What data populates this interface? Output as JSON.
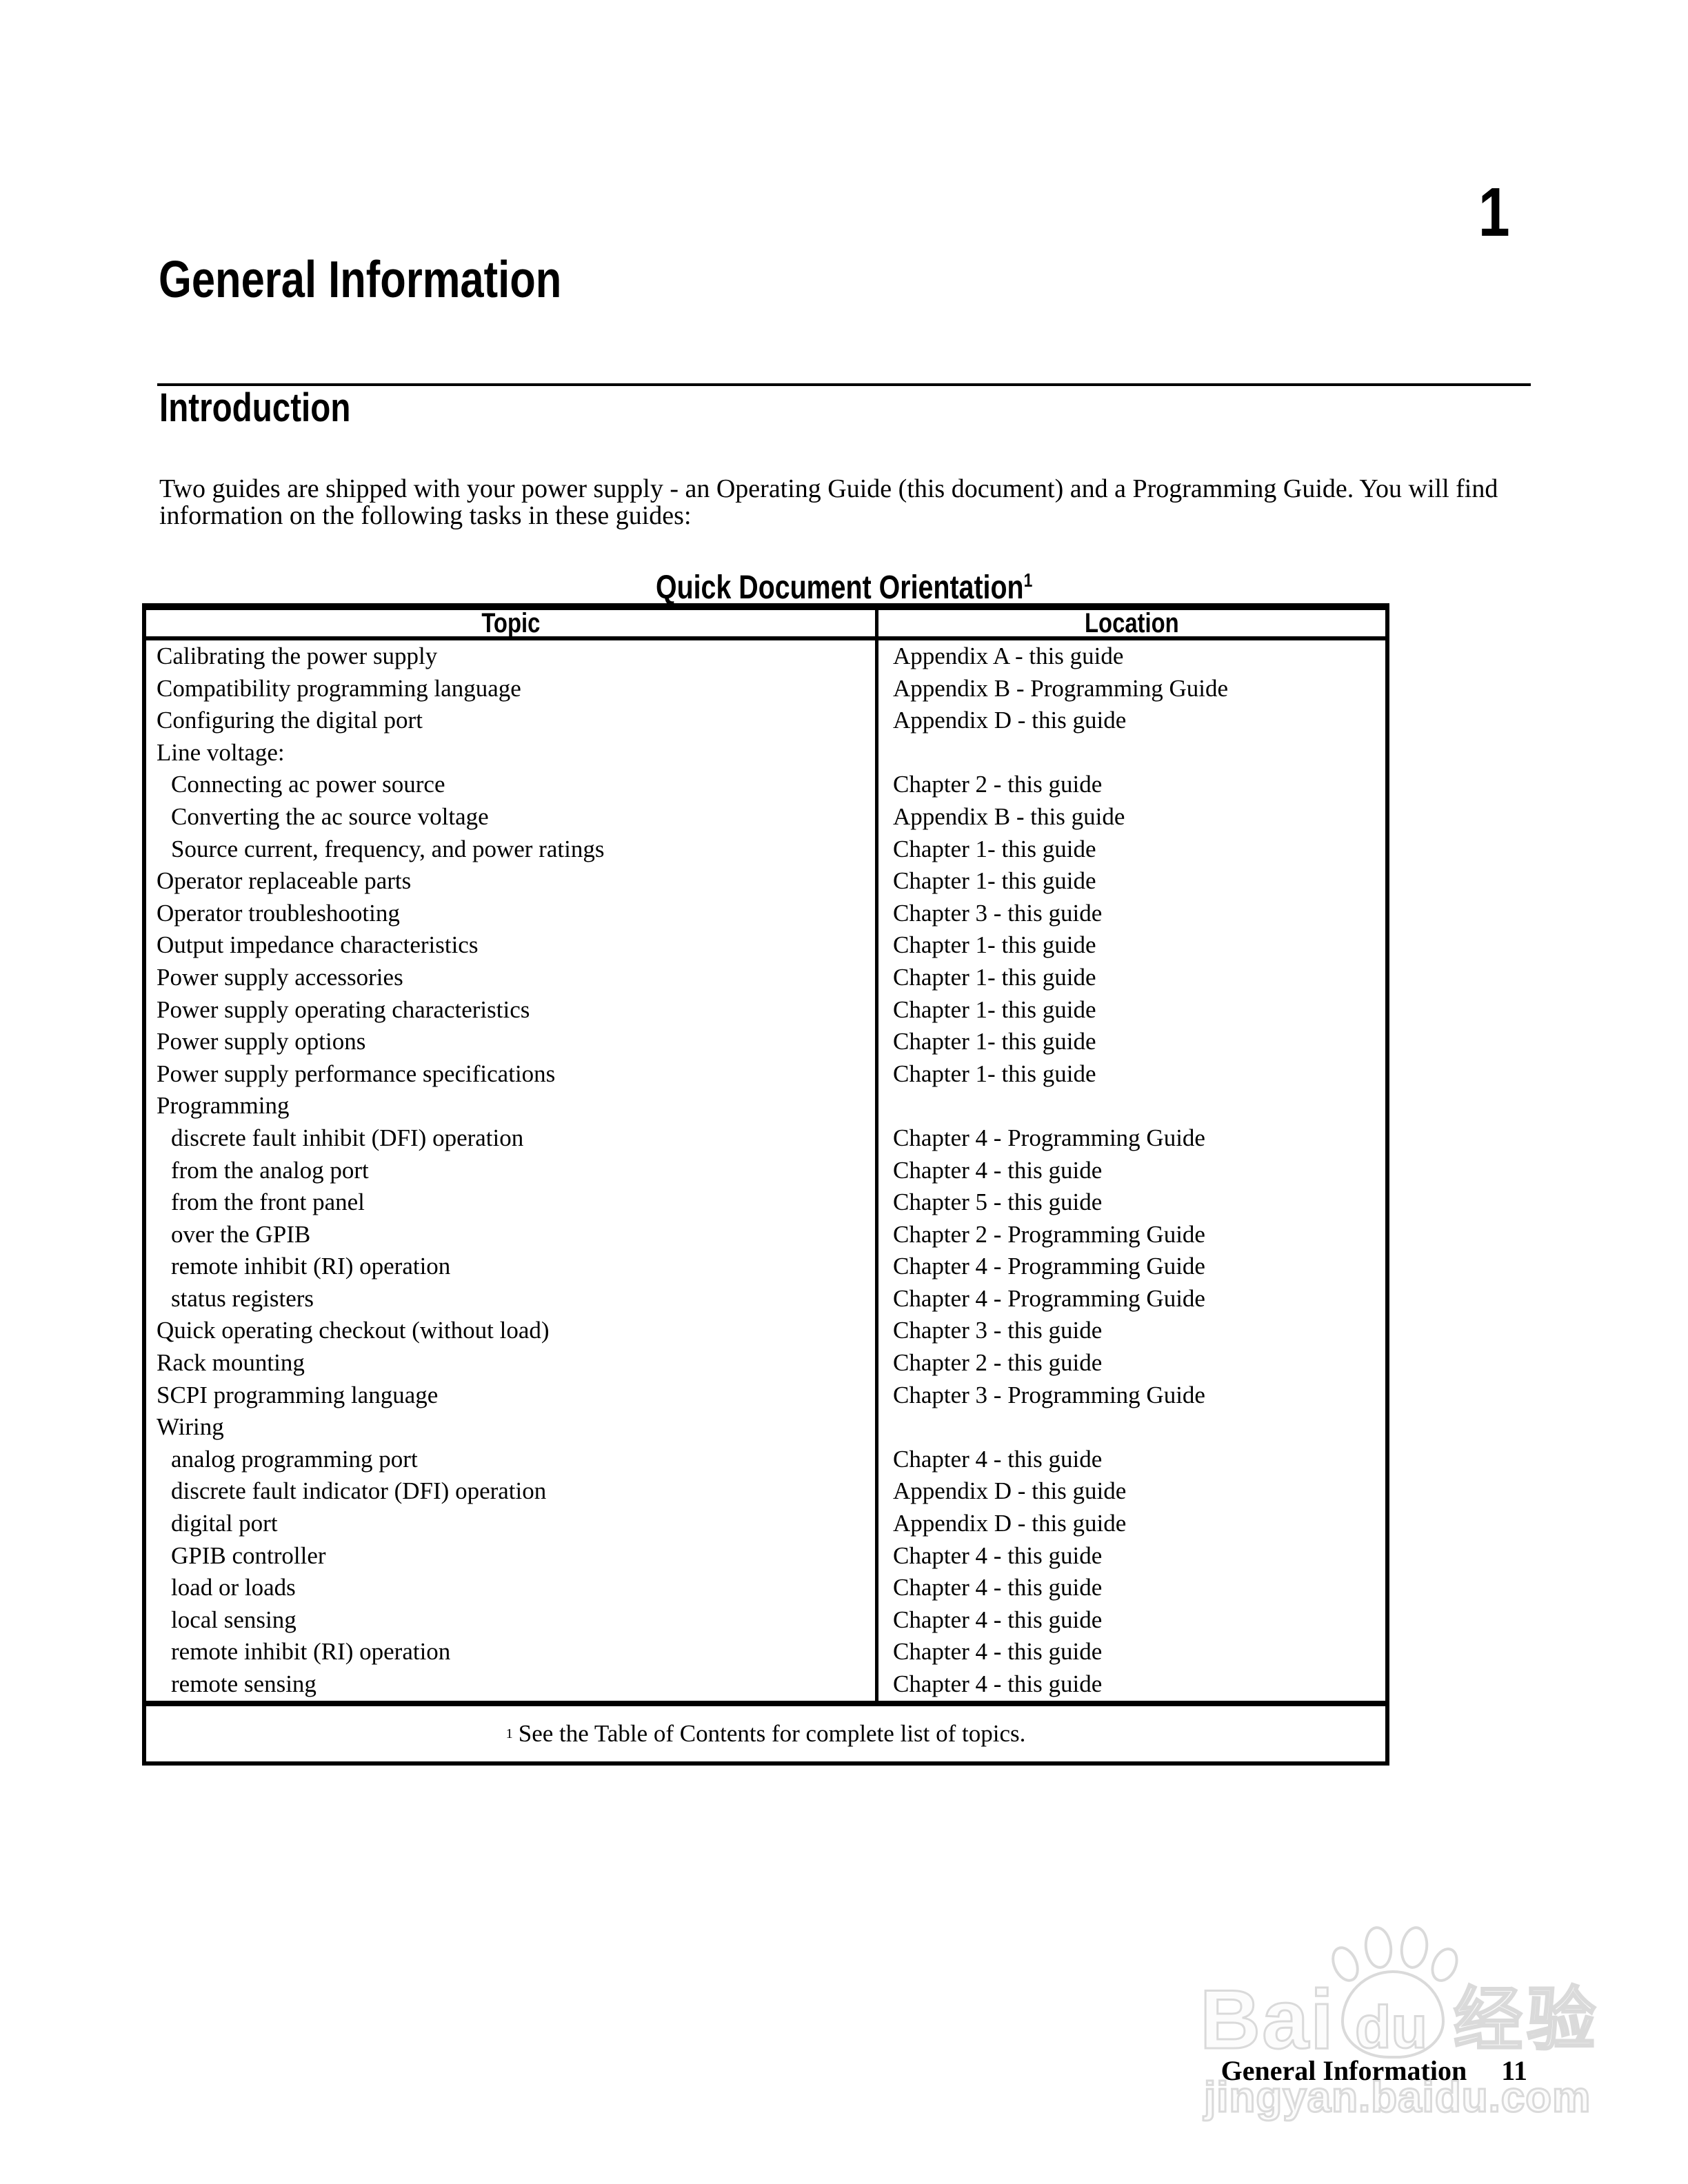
{
  "page": {
    "chapter_number": "1",
    "title": "General Information",
    "section_heading": "Introduction",
    "intro_paragraph": "Two guides are shipped with your power supply - an Operating Guide (this document) and a Programming Guide. You will find information on the following tasks in these guides:"
  },
  "orientation_table": {
    "title": "Quick Document Orientation",
    "title_footnote_marker": "1",
    "headers": [
      "Topic",
      "Location"
    ],
    "rows": [
      {
        "topic": "Calibrating the power supply",
        "location": "Appendix A - this guide",
        "indent": false
      },
      {
        "topic": "Compatibility programming language",
        "location": "Appendix B - Programming Guide",
        "indent": false
      },
      {
        "topic": "Configuring the digital port",
        "location": "Appendix D - this guide",
        "indent": false
      },
      {
        "topic": "Line voltage:",
        "location": "",
        "indent": false
      },
      {
        "topic": "Connecting ac power source",
        "location": "Chapter 2 - this guide",
        "indent": true
      },
      {
        "topic": "Converting the ac source voltage",
        "location": "Appendix B - this guide",
        "indent": true
      },
      {
        "topic": "Source current, frequency, and power ratings",
        "location": "Chapter 1- this guide",
        "indent": true
      },
      {
        "topic": "Operator replaceable parts",
        "location": "Chapter 1- this guide",
        "indent": false
      },
      {
        "topic": "Operator troubleshooting",
        "location": "Chapter 3 - this guide",
        "indent": false
      },
      {
        "topic": "Output impedance characteristics",
        "location": "Chapter 1- this guide",
        "indent": false
      },
      {
        "topic": "Power supply accessories",
        "location": "Chapter 1- this guide",
        "indent": false
      },
      {
        "topic": "Power supply operating characteristics",
        "location": "Chapter 1- this guide",
        "indent": false
      },
      {
        "topic": "Power supply options",
        "location": "Chapter 1- this guide",
        "indent": false
      },
      {
        "topic": "Power supply performance specifications",
        "location": "Chapter 1- this guide",
        "indent": false
      },
      {
        "topic": "Programming",
        "location": "",
        "indent": false
      },
      {
        "topic": "discrete fault inhibit (DFI) operation",
        "location": "Chapter 4 - Programming Guide",
        "indent": true
      },
      {
        "topic": "from the analog port",
        "location": "Chapter 4 - this guide",
        "indent": true
      },
      {
        "topic": "from the front panel",
        "location": "Chapter 5 - this guide",
        "indent": true
      },
      {
        "topic": "over the GPIB",
        "location": "Chapter 2 - Programming Guide",
        "indent": true
      },
      {
        "topic": "remote inhibit (RI) operation",
        "location": "Chapter 4 - Programming Guide",
        "indent": true
      },
      {
        "topic": "status registers",
        "location": "Chapter 4 - Programming Guide",
        "indent": true
      },
      {
        "topic": "Quick operating checkout (without load)",
        "location": "Chapter 3 - this guide",
        "indent": false
      },
      {
        "topic": "Rack mounting",
        "location": "Chapter 2 - this guide",
        "indent": false
      },
      {
        "topic": "SCPI programming language",
        "location": "Chapter 3 - Programming Guide",
        "indent": false
      },
      {
        "topic": "Wiring",
        "location": "",
        "indent": false
      },
      {
        "topic": "analog programming port",
        "location": "Chapter 4 - this guide",
        "indent": true
      },
      {
        "topic": "discrete fault indicator (DFI) operation",
        "location": "Appendix D - this guide",
        "indent": true
      },
      {
        "topic": "digital port",
        "location": "Appendix D - this guide",
        "indent": true
      },
      {
        "topic": "GPIB controller",
        "location": "Chapter 4 - this guide",
        "indent": true
      },
      {
        "topic": "load or loads",
        "location": "Chapter 4 - this guide",
        "indent": true
      },
      {
        "topic": "local sensing",
        "location": "Chapter 4 - this guide",
        "indent": true
      },
      {
        "topic": "remote inhibit (RI) operation",
        "location": "Chapter 4 - this guide",
        "indent": true
      },
      {
        "topic": "remote sensing",
        "location": "Chapter 4 - this guide",
        "indent": true
      }
    ],
    "footnote_marker": "1",
    "footnote_text": "See the Table of Contents for complete list of topics."
  },
  "footer": {
    "section": "General Information",
    "page_number": "11"
  },
  "watermark": {
    "brand_part1": "Bai",
    "brand_part2": "du",
    "brand_cn": "经验",
    "url": "jingyan.baidu.com"
  },
  "colors": {
    "text": "#000000",
    "background": "#ffffff",
    "watermark_outline": "#dadada",
    "watermark_fill": "#fcfcfc"
  }
}
